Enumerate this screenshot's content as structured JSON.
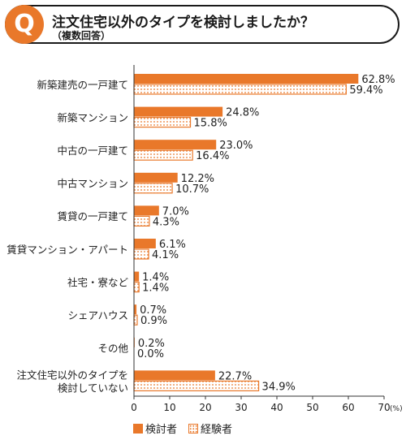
{
  "header": {
    "badge": "Q",
    "title": "注文住宅以外のタイプを検討しましたか？",
    "subtitle": "（複数回答）"
  },
  "colors": {
    "accent": "#e9782a",
    "axis": "#333333"
  },
  "chart_data": {
    "type": "bar",
    "orientation": "horizontal",
    "categories": [
      "新築建売の一戸建て",
      "新築マンション",
      "中古の一戸建て",
      "中古マンション",
      "賃貸の一戸建て",
      "賃貸マンション・アパート",
      "社宅・寮など",
      "シェアハウス",
      "その他",
      "注文住宅以外のタイプを|検討していない"
    ],
    "series": [
      {
        "name": "検討者",
        "values": [
          62.8,
          24.8,
          23.0,
          12.2,
          7.0,
          6.1,
          1.4,
          0.7,
          0.2,
          22.7
        ],
        "labels": [
          "62.8%",
          "24.8%",
          "23.0%",
          "12.2%",
          "7.0%",
          "6.1%",
          "1.4%",
          "0.7%",
          "0.2%",
          "22.7%"
        ],
        "style": "solid"
      },
      {
        "name": "経験者",
        "values": [
          59.4,
          15.8,
          16.4,
          10.7,
          4.3,
          4.1,
          1.4,
          0.9,
          0.0,
          34.9
        ],
        "labels": [
          "59.4%",
          "15.8%",
          "16.4%",
          "10.7%",
          "4.3%",
          "4.1%",
          "1.4%",
          "0.9%",
          "0.0%",
          "34.9%"
        ],
        "style": "dotted"
      }
    ],
    "xlim": [
      0,
      70
    ],
    "xticks": [
      "0",
      "10",
      "20",
      "30",
      "40",
      "50",
      "60",
      "70"
    ],
    "xunit": "(%)",
    "legend": "bottom"
  }
}
